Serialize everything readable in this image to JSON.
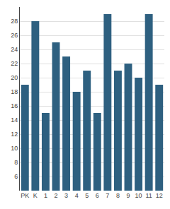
{
  "chart_data": {
    "type": "bar",
    "categories": [
      "PK",
      "K",
      "1",
      "2",
      "3",
      "4",
      "5",
      "6",
      "7",
      "8",
      "9",
      "10",
      "11",
      "12"
    ],
    "values": [
      19,
      28,
      15,
      25,
      23,
      18,
      21,
      15,
      29,
      21,
      22,
      20,
      29,
      19
    ],
    "color": "#2e6080",
    "ylim": [
      4,
      30
    ],
    "yticks": [
      6,
      8,
      10,
      12,
      14,
      16,
      18,
      20,
      22,
      24,
      26,
      28
    ],
    "grid": true
  }
}
